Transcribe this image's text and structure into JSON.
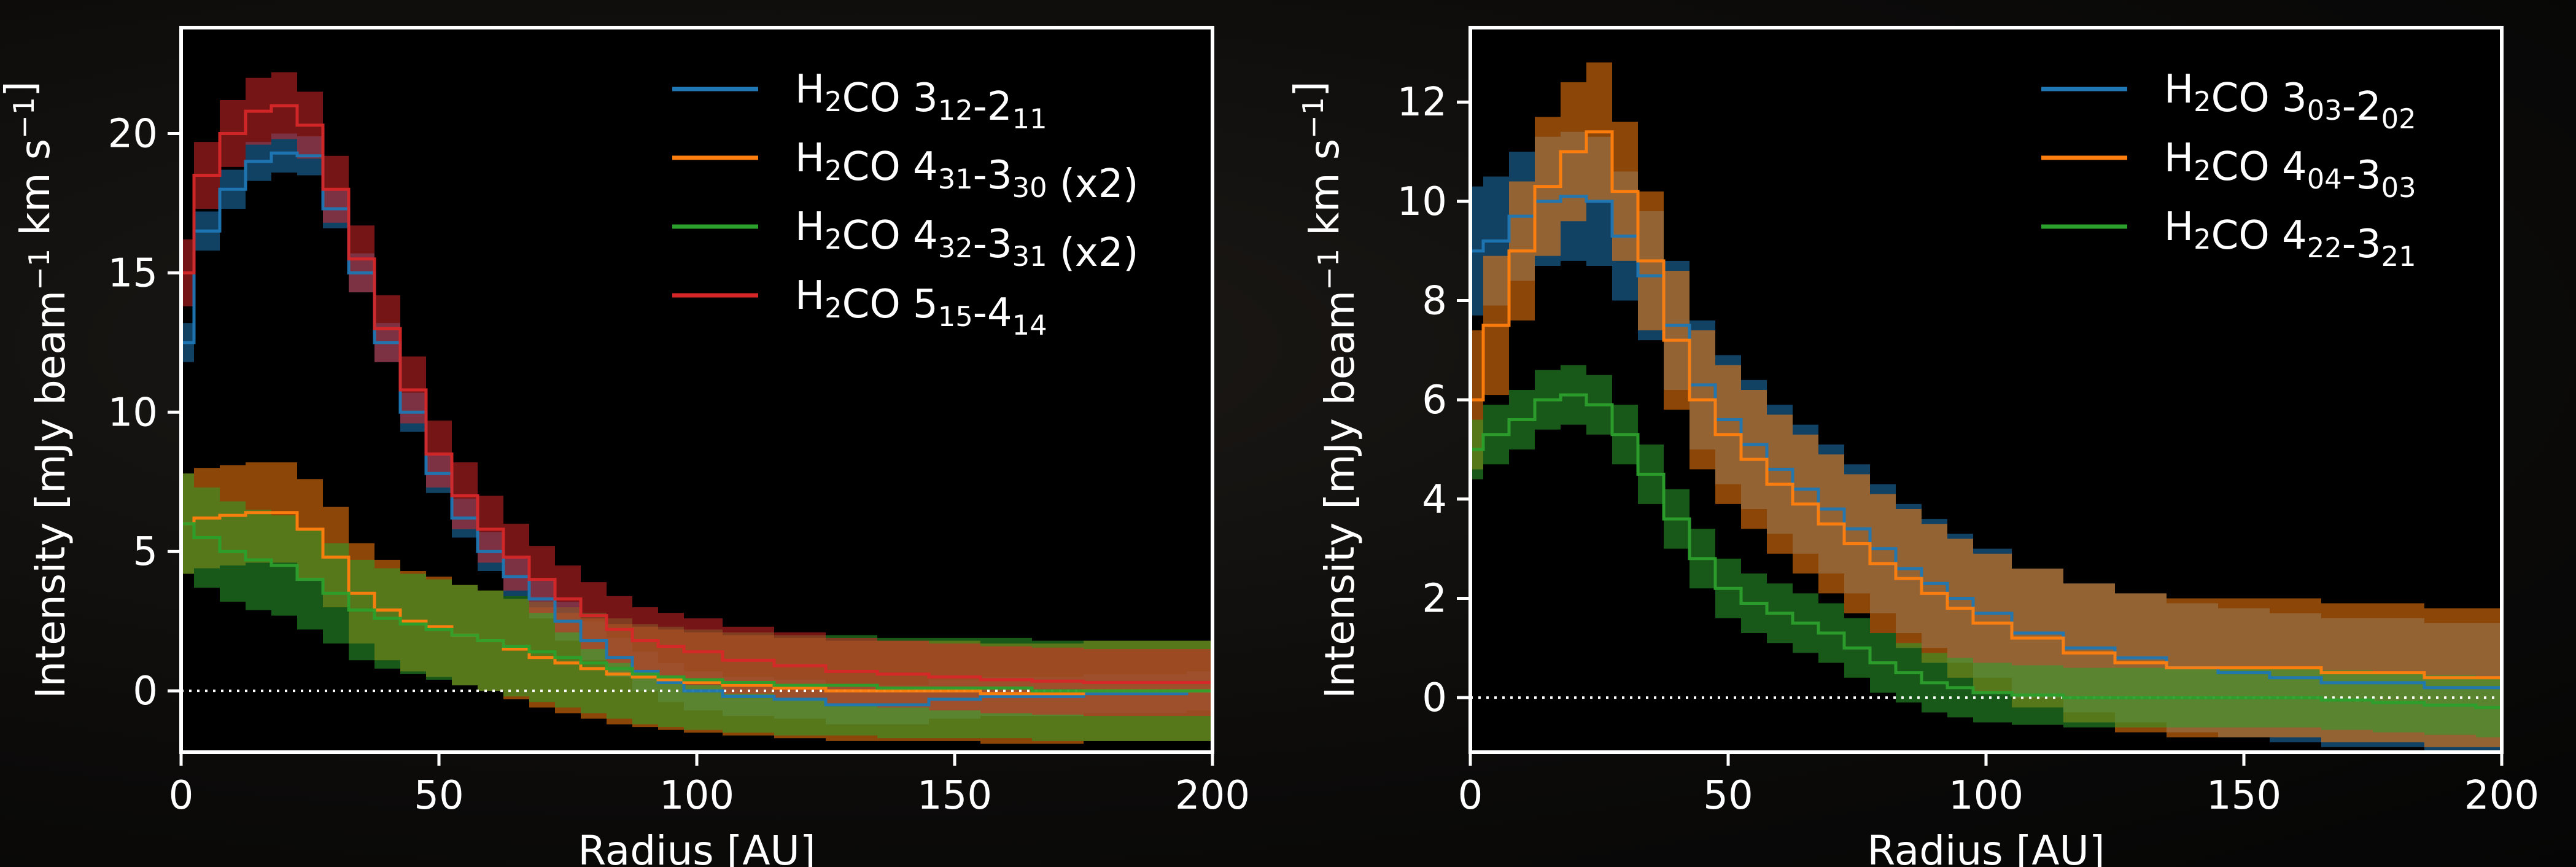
{
  "colors": {
    "background": "#0c0b0a",
    "axes_bg": "#000000",
    "frame": "#ffffff",
    "text": "#ffffff",
    "blue": "#1f77b4",
    "orange": "#ff7f0e",
    "green": "#2ca02c",
    "red": "#d62728"
  },
  "chart_data": [
    {
      "type": "line",
      "style": "step with shaded uncertainty band",
      "xlabel": "Radius [AU]",
      "ylabel": "Intensity [mJy beam⁻¹ km s⁻¹]",
      "xlim": [
        0,
        200
      ],
      "ylim": [
        -2.2,
        23.8
      ],
      "xticks": [
        0,
        50,
        100,
        150,
        200
      ],
      "yticks": [
        0,
        5,
        10,
        15,
        20
      ],
      "grid": false,
      "zero_line": "dotted",
      "legend_placement": "top-right",
      "x": [
        0,
        5,
        10,
        15,
        20,
        25,
        30,
        35,
        40,
        45,
        50,
        55,
        60,
        65,
        70,
        75,
        80,
        85,
        90,
        95,
        100,
        110,
        120,
        130,
        140,
        150,
        160,
        170,
        180,
        190,
        200
      ],
      "series": [
        {
          "name": "H₂CO 3₁₂-2₁₁",
          "color": "#1f77b4",
          "values": [
            12.5,
            16.5,
            18.0,
            19.0,
            19.3,
            19.2,
            17.3,
            15.0,
            12.5,
            10.0,
            7.8,
            6.2,
            5.0,
            4.1,
            3.3,
            2.5,
            1.8,
            1.2,
            0.7,
            0.3,
            0.0,
            -0.2,
            -0.3,
            -0.5,
            -0.5,
            -0.3,
            -0.2,
            -0.2,
            -0.1,
            -0.1,
            0.0
          ],
          "uncertainty": 0.7
        },
        {
          "name": "H₂CO 4₃₁-3₃₀ (x2)",
          "color": "#ff7f0e",
          "values": [
            6.0,
            6.2,
            6.3,
            6.4,
            6.4,
            5.8,
            4.8,
            3.5,
            2.9,
            2.5,
            2.3,
            2.0,
            1.8,
            1.5,
            1.2,
            1.0,
            0.8,
            0.6,
            0.5,
            0.4,
            0.3,
            0.2,
            0.1,
            0.0,
            0.0,
            0.0,
            -0.1,
            -0.1,
            0.0,
            0.0,
            0.0
          ],
          "uncertainty": 1.8
        },
        {
          "name": "H₂CO 4₃₂-3₃₁ (x2)",
          "color": "#2ca02c",
          "values": [
            6.0,
            5.5,
            5.0,
            4.7,
            4.5,
            4.0,
            3.5,
            2.9,
            2.6,
            2.4,
            2.2,
            2.0,
            1.8,
            1.6,
            1.4,
            1.2,
            1.0,
            0.8,
            0.6,
            0.5,
            0.4,
            0.3,
            0.2,
            0.2,
            0.1,
            0.1,
            0.1,
            0.0,
            0.0,
            0.0,
            0.0
          ],
          "uncertainty": 1.8
        },
        {
          "name": "H₂CO 5₁₅-4₁₄",
          "color": "#d62728",
          "values": [
            15.0,
            18.5,
            20.0,
            20.8,
            21.0,
            20.3,
            18.0,
            15.5,
            13.0,
            10.8,
            8.5,
            7.0,
            5.8,
            4.8,
            4.0,
            3.3,
            2.7,
            2.2,
            1.8,
            1.6,
            1.4,
            1.1,
            0.9,
            0.7,
            0.6,
            0.5,
            0.4,
            0.35,
            0.3,
            0.3,
            0.3
          ],
          "uncertainty": 1.2
        }
      ]
    },
    {
      "type": "line",
      "style": "step with shaded uncertainty band",
      "xlabel": "Radius [AU]",
      "ylabel": "Intensity [mJy beam⁻¹ km s⁻¹]",
      "xlim": [
        0,
        200
      ],
      "ylim": [
        -1.1,
        13.5
      ],
      "xticks": [
        0,
        50,
        100,
        150,
        200
      ],
      "yticks": [
        0,
        2,
        4,
        6,
        8,
        10,
        12
      ],
      "grid": false,
      "zero_line": "dotted",
      "legend_placement": "top-right",
      "x": [
        0,
        5,
        10,
        15,
        20,
        25,
        30,
        35,
        40,
        45,
        50,
        55,
        60,
        65,
        70,
        75,
        80,
        85,
        90,
        95,
        100,
        110,
        120,
        130,
        140,
        150,
        160,
        170,
        180,
        190,
        200
      ],
      "series": [
        {
          "name": "H₂CO 3₀₃-2₀₂",
          "color": "#1f77b4",
          "values": [
            9.0,
            9.2,
            9.7,
            10.0,
            10.1,
            10.0,
            9.3,
            8.5,
            7.5,
            6.3,
            5.6,
            5.1,
            4.6,
            4.2,
            3.8,
            3.4,
            3.0,
            2.6,
            2.3,
            2.0,
            1.7,
            1.3,
            1.0,
            0.8,
            0.6,
            0.5,
            0.4,
            0.3,
            0.3,
            0.2,
            0.2
          ],
          "uncertainty": 1.3
        },
        {
          "name": "H₂CO 4₀₄-3₀₃",
          "color": "#ff7f0e",
          "values": [
            6.0,
            7.5,
            9.0,
            10.3,
            11.0,
            11.4,
            10.2,
            8.8,
            7.2,
            6.0,
            5.3,
            4.8,
            4.3,
            3.9,
            3.5,
            3.1,
            2.7,
            2.4,
            2.1,
            1.8,
            1.5,
            1.2,
            0.9,
            0.7,
            0.6,
            0.6,
            0.6,
            0.5,
            0.5,
            0.4,
            0.4
          ],
          "uncertainty": 1.4
        },
        {
          "name": "H₂CO 4₂₂-3₂₁",
          "color": "#2ca02c",
          "values": [
            5.0,
            5.3,
            5.6,
            6.0,
            6.1,
            5.9,
            5.3,
            4.5,
            3.6,
            2.8,
            2.2,
            1.9,
            1.7,
            1.5,
            1.3,
            1.0,
            0.7,
            0.5,
            0.3,
            0.2,
            0.1,
            0.05,
            0.0,
            0.0,
            0.0,
            0.0,
            0.0,
            -0.05,
            -0.1,
            -0.15,
            -0.2
          ],
          "uncertainty": 0.6
        }
      ]
    }
  ]
}
